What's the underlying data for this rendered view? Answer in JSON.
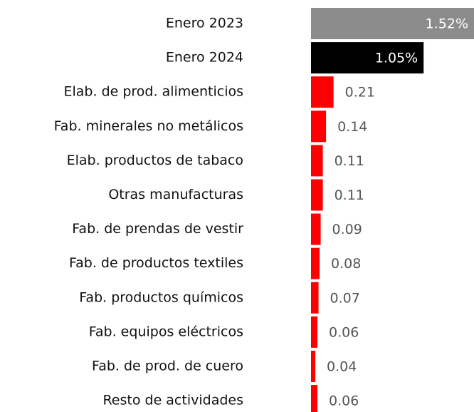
{
  "chart_data": {
    "type": "bar",
    "orientation": "horizontal",
    "categories": [
      "Enero 2023",
      "Enero 2024",
      "Elab. de prod. alimenticios",
      "Fab. minerales no metálicos",
      "Elab. productos de tabaco",
      "Otras manufacturas",
      "Fab. de prendas de vestir",
      "Fab. de productos textiles",
      "Fab. productos químicos",
      "Fab. equipos eléctricos",
      "Fab. de prod. de cuero",
      "Resto de actividades"
    ],
    "values": [
      1.52,
      1.05,
      0.21,
      0.14,
      0.11,
      0.11,
      0.09,
      0.08,
      0.07,
      0.06,
      0.04,
      0.06
    ],
    "value_labels": [
      "1.52%",
      "1.05%",
      "0.21",
      "0.14",
      "0.11",
      "0.11",
      "0.09",
      "0.08",
      "0.07",
      "0.06",
      "0.04",
      "0.06"
    ],
    "colors": [
      "#8c8c8c",
      "#000000",
      "#ff0000",
      "#ff0000",
      "#ff0000",
      "#ff0000",
      "#ff0000",
      "#ff0000",
      "#ff0000",
      "#ff0000",
      "#ff0000",
      "#ff0000"
    ]
  }
}
